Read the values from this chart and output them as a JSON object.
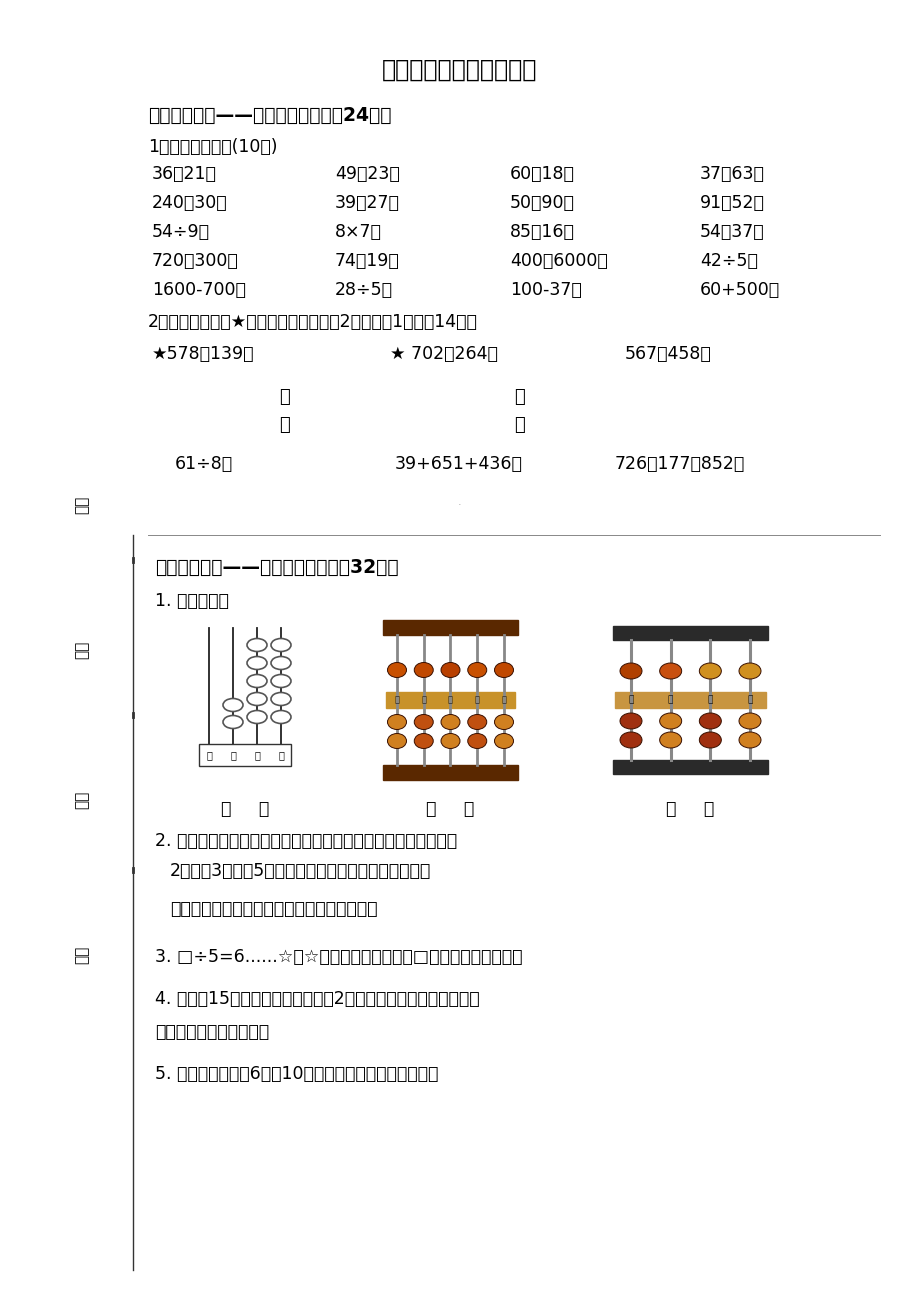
{
  "bg_color": "#ffffff",
  "title": "二年级数学下册期末试卷",
  "s1_header": "一、小试牛刀——我要仔细地算。（24分）",
  "s1_sub1": "1、直接写出得数(10分)",
  "calc_rows": [
    [
      "36＋21＝",
      "49＋23＝",
      "60－18＝",
      "37＋63＝"
    ],
    [
      "240－30＝",
      "39－27＝",
      "50＋90＝",
      "91－52＝"
    ],
    [
      "54÷9＝",
      "8×7＝",
      "85－16＝",
      "54＋37＝"
    ],
    [
      "720－300＝",
      "74－19＝",
      "400＋6000＝",
      "42÷5＝"
    ],
    [
      "1600-700＝",
      "28÷5＝",
      "100-37＝",
      "60+500＝"
    ]
  ],
  "s1_sub2": "2、竖式计算（带★题要验算）。（计算2分，验算1分，入14分）",
  "star_row": [
    "★578＋139＝",
    "★ 702－264＝",
    "567－458＝"
  ],
  "yan": "验",
  "suan": "算",
  "bottom_row": [
    "61÷8＝",
    "39+651+436＝",
    "726－177＋852＝"
  ],
  "s2_header": "二、崭露头角——我会耐心地填。（32分）",
  "s2_q1": "1. 看图写数。",
  "abacus_label": "(　　)",
  "q2_1": "2. 最小的五位数是（　　　　），它里面有（　　　）个一百。",
  "q2_2": "2个千，3个百和5个一组成的数是（　　　　　　）。",
  "q2_3": "最小的三位数比最小四位数少（　　　　）。",
  "q3": "3. □÷5=6......☆，☆最大是（　　　），□最小是（　　　）。",
  "q4_1": "4. 屋前朗15盆花，王大伯每次能搬2盆花，要将这些花都搬进屋子",
  "q4_2": "，至少要搬（　　）次。",
  "q5": "5. 分针在钟面上从6走到10，一共走了（　　　）分钟。",
  "left_labels": [
    "学号",
    "姓名",
    "班级",
    "学校"
  ],
  "note_dot": "·"
}
